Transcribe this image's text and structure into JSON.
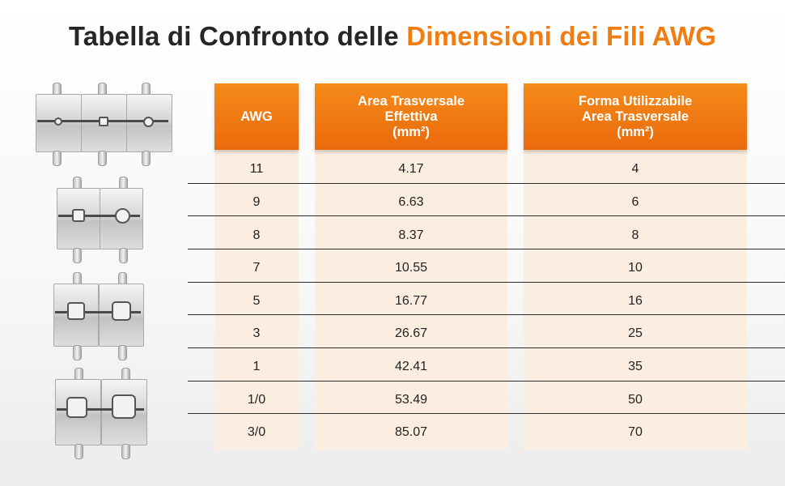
{
  "title": {
    "part1": "Tabella di Confronto delle",
    "part2": "Dimensioni dei Fili AWG"
  },
  "colors": {
    "accent": "#f07d12",
    "header_bg": "#ef7a12",
    "cell_bg": "#fbeee0",
    "title_dark": "#262626"
  },
  "table": {
    "headers": {
      "awg": "AWG",
      "area_line1": "Area Trasversale",
      "area_line2": "Effettiva",
      "area_line3": "(mm²)",
      "form_line1": "Forma Utilizzabile",
      "form_line2": "Area Trasversale",
      "form_line3": "(mm²)"
    },
    "rows": [
      {
        "awg": "11",
        "area": "4.17",
        "form": "4"
      },
      {
        "awg": "9",
        "area": "6.63",
        "form": "6"
      },
      {
        "awg": "8",
        "area": "8.37",
        "form": "8"
      },
      {
        "awg": "7",
        "area": "10.55",
        "form": "10"
      },
      {
        "awg": "5",
        "area": "16.77",
        "form": "16"
      },
      {
        "awg": "3",
        "area": "26.67",
        "form": "25"
      },
      {
        "awg": "1",
        "area": "42.41",
        "form": "35"
      },
      {
        "awg": "1/0",
        "area": "53.49",
        "form": "50"
      },
      {
        "awg": "3/0",
        "area": "85.07",
        "form": "70"
      }
    ]
  },
  "images": [
    {
      "name": "crimp-die-set-1",
      "kind": "three-die block"
    },
    {
      "name": "crimp-die-set-2",
      "kind": "two-die block"
    },
    {
      "name": "crimp-die-set-3",
      "kind": "two-die block"
    },
    {
      "name": "crimp-die-set-4",
      "kind": "two-die block"
    }
  ]
}
